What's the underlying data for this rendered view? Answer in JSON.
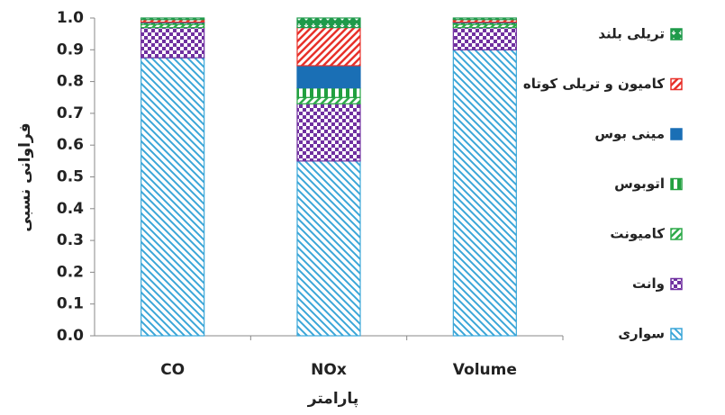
{
  "chart_data": {
    "type": "stacked_bar",
    "y_label": "فراوانی نسبی",
    "x_label": "پارامتر",
    "categories": [
      "CO",
      "NOx",
      "Volume"
    ],
    "ylim": [
      0,
      1
    ],
    "yticks": [
      {
        "value": 0,
        "label": "0.0"
      },
      0.1,
      0.2,
      0.3,
      0.4,
      0.5,
      0.6,
      0.7,
      0.8,
      0.9,
      {
        "value": 1,
        "label": "1.0"
      }
    ],
    "series": [
      {
        "name": "سواری",
        "color": "#3aa6d8",
        "pattern": "diag-down",
        "values": [
          0.875,
          0.55,
          0.9
        ]
      },
      {
        "name": "وانت",
        "color": "#7030a0",
        "pattern": "checker",
        "values": [
          0.095,
          0.18,
          0.07
        ]
      },
      {
        "name": "کامیونت",
        "color": "#2eaa4a",
        "pattern": "diag-up",
        "values": [
          0.01,
          0.02,
          0.01
        ]
      },
      {
        "name": "اتوبوس",
        "color": "#22a040",
        "pattern": "vertical",
        "values": [
          0.005,
          0.03,
          0.005
        ]
      },
      {
        "name": "مینی بوس",
        "color": "#1a6fb5",
        "pattern": "solid",
        "values": [
          0.002,
          0.07,
          0.002
        ]
      },
      {
        "name": "کامیون و تریلی کوتاه",
        "color": "#e8312a",
        "pattern": "diag-up",
        "values": [
          0.008,
          0.12,
          0.008
        ]
      },
      {
        "name": "تریلی بلند",
        "color": "#1e9a4a",
        "pattern": "dots",
        "values": [
          0.005,
          0.03,
          0.005
        ]
      }
    ]
  }
}
